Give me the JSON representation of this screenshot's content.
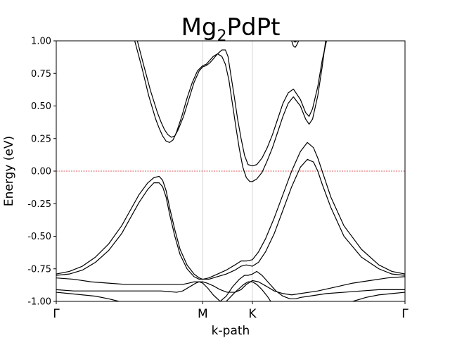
{
  "chart_data": {
    "type": "line",
    "title": "Mg2PdPt",
    "title_main": "Mg",
    "title_sub": "2",
    "title_rest": "PdPt",
    "xlabel": "k-path",
    "ylabel": "Energy (eV)",
    "xlim": [
      0,
      4.0
    ],
    "ylim": [
      -1.0,
      1.0
    ],
    "x_ticks": [
      {
        "label": "Γ",
        "value": 0.0
      },
      {
        "label": "M",
        "value": 1.68
      },
      {
        "label": "K",
        "value": 2.25
      },
      {
        "label": "Γ",
        "value": 4.0
      }
    ],
    "y_ticks": [
      "-1.00",
      "-0.75",
      "-0.50",
      "-0.25",
      "0.00",
      "0.25",
      "0.50",
      "0.75",
      "1.00"
    ],
    "y_tick_values": [
      -1.0,
      -0.75,
      -0.5,
      -0.25,
      0.0,
      0.25,
      0.5,
      0.75,
      1.0
    ],
    "vertical_lines": [
      1.68,
      2.25
    ],
    "fermi_level": 0.0,
    "colors": {
      "bands": "#000000",
      "fermi": "#d62728",
      "vlines": "#cccccc"
    },
    "series": [
      {
        "x": [
          0.93,
          1.0,
          1.08,
          1.16,
          1.2,
          1.24,
          1.28,
          1.32,
          1.36,
          1.4,
          1.46,
          1.52,
          1.58,
          1.64,
          1.68,
          1.72,
          1.76,
          1.8,
          1.85,
          1.9,
          1.94,
          1.97,
          2.0,
          2.04,
          2.08,
          2.12,
          2.16,
          2.2,
          2.25,
          2.3,
          2.36,
          2.42,
          2.48,
          2.54,
          2.6,
          2.66,
          2.72,
          2.8,
          2.86,
          2.9,
          2.94,
          3.0,
          3.05,
          3.1
        ],
        "y": [
          1.0,
          0.82,
          0.62,
          0.45,
          0.38,
          0.32,
          0.28,
          0.26,
          0.27,
          0.32,
          0.42,
          0.55,
          0.68,
          0.77,
          0.8,
          0.81,
          0.83,
          0.86,
          0.9,
          0.93,
          0.93,
          0.88,
          0.75,
          0.58,
          0.4,
          0.25,
          0.12,
          0.05,
          0.04,
          0.05,
          0.1,
          0.18,
          0.28,
          0.4,
          0.52,
          0.6,
          0.63,
          0.55,
          0.45,
          0.42,
          0.48,
          0.65,
          0.85,
          1.0
        ]
      },
      {
        "x": [
          0.9,
          0.98,
          1.06,
          1.14,
          1.18,
          1.22,
          1.26,
          1.3,
          1.34,
          1.38,
          1.44,
          1.5,
          1.56,
          1.62,
          1.68,
          1.72,
          1.76,
          1.8,
          1.85,
          1.9,
          1.94,
          1.98,
          2.02,
          2.06,
          2.1,
          2.14,
          2.18,
          2.22,
          2.25,
          2.3,
          2.36,
          2.42,
          2.48,
          2.54,
          2.6,
          2.66,
          2.72,
          2.8,
          2.86,
          2.9,
          2.94,
          3.0,
          3.05,
          3.09
        ],
        "y": [
          1.0,
          0.8,
          0.58,
          0.4,
          0.33,
          0.27,
          0.23,
          0.22,
          0.24,
          0.3,
          0.42,
          0.56,
          0.68,
          0.77,
          0.81,
          0.82,
          0.85,
          0.88,
          0.9,
          0.88,
          0.82,
          0.7,
          0.52,
          0.34,
          0.17,
          0.03,
          -0.05,
          -0.08,
          -0.08,
          -0.06,
          -0.01,
          0.08,
          0.18,
          0.3,
          0.42,
          0.52,
          0.57,
          0.5,
          0.4,
          0.36,
          0.4,
          0.58,
          0.8,
          1.0
        ]
      },
      {
        "x": [
          2.7,
          2.72,
          2.74,
          2.76,
          2.78
        ],
        "y": [
          1.0,
          0.96,
          0.95,
          0.97,
          1.0
        ]
      },
      {
        "x": [
          2.72,
          2.74,
          2.76
        ],
        "y": [
          1.0,
          0.99,
          1.0
        ]
      },
      {
        "x": [
          0.0,
          0.15,
          0.3,
          0.45,
          0.6,
          0.75,
          0.85,
          0.95,
          1.05,
          1.12,
          1.18,
          1.22,
          1.26,
          1.3,
          1.36,
          1.42,
          1.5,
          1.58,
          1.64,
          1.68,
          1.75,
          1.85,
          1.95,
          2.05,
          2.12,
          2.18,
          2.25,
          2.32,
          2.4,
          2.5,
          2.6,
          2.7,
          2.8,
          2.88,
          2.95,
          3.0,
          3.05,
          3.15,
          3.3,
          3.5,
          3.7,
          3.85,
          4.0
        ],
        "y": [
          -0.79,
          -0.77,
          -0.73,
          -0.66,
          -0.56,
          -0.42,
          -0.3,
          -0.18,
          -0.09,
          -0.05,
          -0.04,
          -0.07,
          -0.15,
          -0.28,
          -0.45,
          -0.6,
          -0.72,
          -0.79,
          -0.82,
          -0.83,
          -0.82,
          -0.79,
          -0.76,
          -0.72,
          -0.69,
          -0.69,
          -0.68,
          -0.62,
          -0.52,
          -0.36,
          -0.18,
          0.0,
          0.15,
          0.22,
          0.18,
          0.1,
          0.0,
          -0.2,
          -0.42,
          -0.6,
          -0.72,
          -0.77,
          -0.79
        ]
      },
      {
        "x": [
          0.0,
          0.15,
          0.3,
          0.45,
          0.6,
          0.75,
          0.85,
          0.95,
          1.05,
          1.12,
          1.18,
          1.22,
          1.26,
          1.3,
          1.36,
          1.42,
          1.5,
          1.58,
          1.64,
          1.68,
          1.75,
          1.85,
          1.95,
          2.05,
          2.12,
          2.18,
          2.25,
          2.32,
          2.4,
          2.5,
          2.6,
          2.7,
          2.8,
          2.88,
          2.95,
          3.0,
          3.05,
          3.15,
          3.3,
          3.5,
          3.7,
          3.85,
          4.0
        ],
        "y": [
          -0.8,
          -0.79,
          -0.76,
          -0.7,
          -0.61,
          -0.48,
          -0.36,
          -0.24,
          -0.14,
          -0.09,
          -0.09,
          -0.12,
          -0.2,
          -0.33,
          -0.5,
          -0.64,
          -0.75,
          -0.81,
          -0.83,
          -0.83,
          -0.83,
          -0.81,
          -0.79,
          -0.76,
          -0.73,
          -0.72,
          -0.73,
          -0.7,
          -0.62,
          -0.48,
          -0.3,
          -0.12,
          0.03,
          0.09,
          0.07,
          0.0,
          -0.1,
          -0.28,
          -0.5,
          -0.66,
          -0.75,
          -0.79,
          -0.8
        ]
      },
      {
        "x": [
          0.0,
          0.2,
          0.4,
          0.6,
          0.8,
          1.0,
          1.2,
          1.35,
          1.45,
          1.52,
          1.58,
          1.63,
          1.68,
          1.73,
          1.8,
          1.88,
          1.96,
          2.05,
          2.12,
          2.18,
          2.25,
          2.32,
          2.4,
          2.5,
          2.6,
          2.7,
          2.8,
          2.9,
          3.0,
          3.2,
          3.4,
          3.6,
          3.8,
          4.0
        ],
        "y": [
          -0.82,
          -0.83,
          -0.85,
          -0.86,
          -0.87,
          -0.87,
          -0.87,
          -0.87,
          -0.87,
          -0.86,
          -0.85,
          -0.85,
          -0.85,
          -0.86,
          -0.88,
          -0.91,
          -0.93,
          -0.93,
          -0.91,
          -0.87,
          -0.84,
          -0.85,
          -0.88,
          -0.92,
          -0.94,
          -0.95,
          -0.94,
          -0.93,
          -0.92,
          -0.89,
          -0.86,
          -0.84,
          -0.82,
          -0.81
        ]
      },
      {
        "x": [
          0.0,
          0.2,
          0.4,
          0.6,
          0.8,
          1.0,
          1.2,
          1.3,
          1.38,
          1.45,
          1.5,
          1.55,
          1.6,
          1.64,
          1.68,
          1.74,
          1.8,
          1.88,
          1.95,
          2.02,
          2.1,
          2.16,
          2.2,
          2.25,
          2.3,
          2.36,
          2.44,
          2.52,
          2.6,
          2.68,
          2.75,
          2.8,
          2.9,
          3.0,
          3.1,
          3.3,
          3.5,
          3.7,
          3.9,
          4.0
        ],
        "y": [
          -0.91,
          -0.92,
          -0.92,
          -0.92,
          -0.92,
          -0.92,
          -0.92,
          -0.925,
          -0.93,
          -0.92,
          -0.9,
          -0.88,
          -0.86,
          -0.85,
          -0.86,
          -0.9,
          -0.95,
          -1.0,
          -0.96,
          -0.89,
          -0.83,
          -0.8,
          -0.8,
          -0.79,
          -0.77,
          -0.8,
          -0.86,
          -0.92,
          -0.96,
          -0.98,
          -0.98,
          -0.97,
          -0.96,
          -0.95,
          -0.94,
          -0.93,
          -0.92,
          -0.91,
          -0.91,
          -0.91
        ]
      },
      {
        "x": [
          0.0,
          0.15,
          0.3,
          0.45,
          0.6,
          0.72
        ],
        "y": [
          -0.93,
          -0.94,
          -0.95,
          -0.96,
          -0.98,
          -1.0
        ]
      },
      {
        "x": [
          1.95,
          2.05,
          2.15,
          2.2,
          2.25,
          2.3,
          2.36,
          2.42,
          2.46
        ],
        "y": [
          -1.0,
          -0.93,
          -0.87,
          -0.85,
          -0.85,
          -0.87,
          -0.91,
          -0.96,
          -1.0
        ]
      },
      {
        "x": [
          3.4,
          3.55,
          3.7,
          3.85,
          4.0
        ],
        "y": [
          -1.0,
          -0.97,
          -0.95,
          -0.94,
          -0.93
        ]
      }
    ]
  }
}
